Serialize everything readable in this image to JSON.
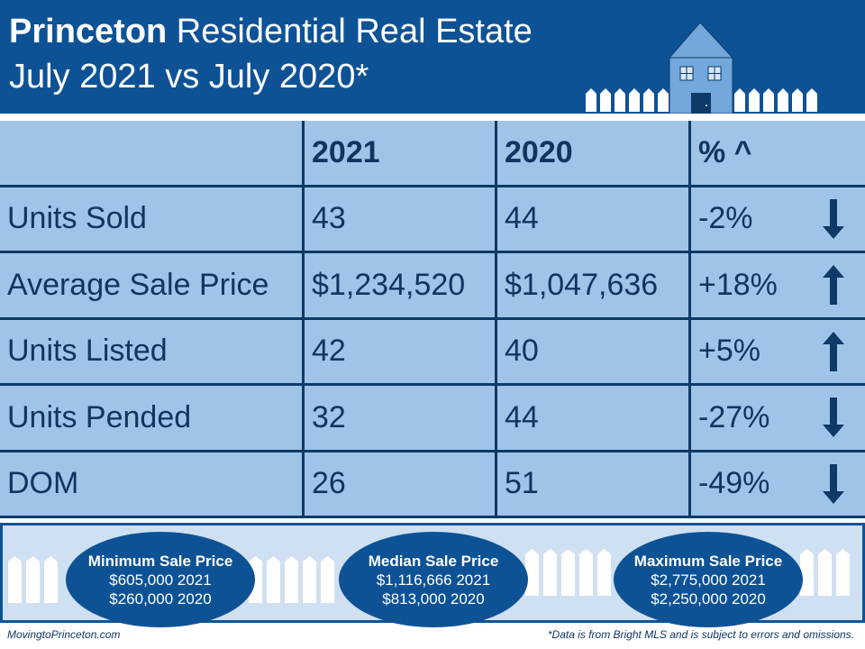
{
  "header": {
    "title_bold": "Princeton",
    "title_rest": " Residential Real Estate",
    "subtitle": "July 2021 vs July 2020*"
  },
  "colors": {
    "header": "#0e5296",
    "cell": "#a0c4e8",
    "border": "#0d3a66",
    "text": "#0f3660"
  },
  "table": {
    "columns": [
      "",
      "2021",
      "2020",
      "% ^"
    ],
    "rows": [
      {
        "label": "Units Sold",
        "y2021": "43",
        "y2020": "44",
        "change": "-2%",
        "trend": "down"
      },
      {
        "label": "Average Sale Price",
        "y2021": "$1,234,520",
        "y2020": "$1,047,636",
        "change": "+18%",
        "trend": "up"
      },
      {
        "label": "Units Listed",
        "y2021": "42",
        "y2020": "40",
        "change": "+5%",
        "trend": "up"
      },
      {
        "label": "Units Pended",
        "y2021": "32",
        "y2020": "44",
        "change": "-27%",
        "trend": "down"
      },
      {
        "label": "DOM",
        "y2021": "26",
        "y2020": "51",
        "change": "-49%",
        "trend": "down"
      }
    ]
  },
  "summary": [
    {
      "title": "Minimum Sale Price",
      "line1": "$605,000 2021",
      "line2": "$260,000  2020"
    },
    {
      "title": "Median Sale Price",
      "line1": "$1,116,666 2021",
      "line2": "$813,000  2020"
    },
    {
      "title": "Maximum Sale Price",
      "line1": "$2,775,000 2021",
      "line2": "$2,250,000 2020"
    }
  ],
  "footer": {
    "site": "MovingtoPrinceton.com",
    "disclaimer": "*Data is from Bright MLS and is subject to errors and omissions."
  }
}
